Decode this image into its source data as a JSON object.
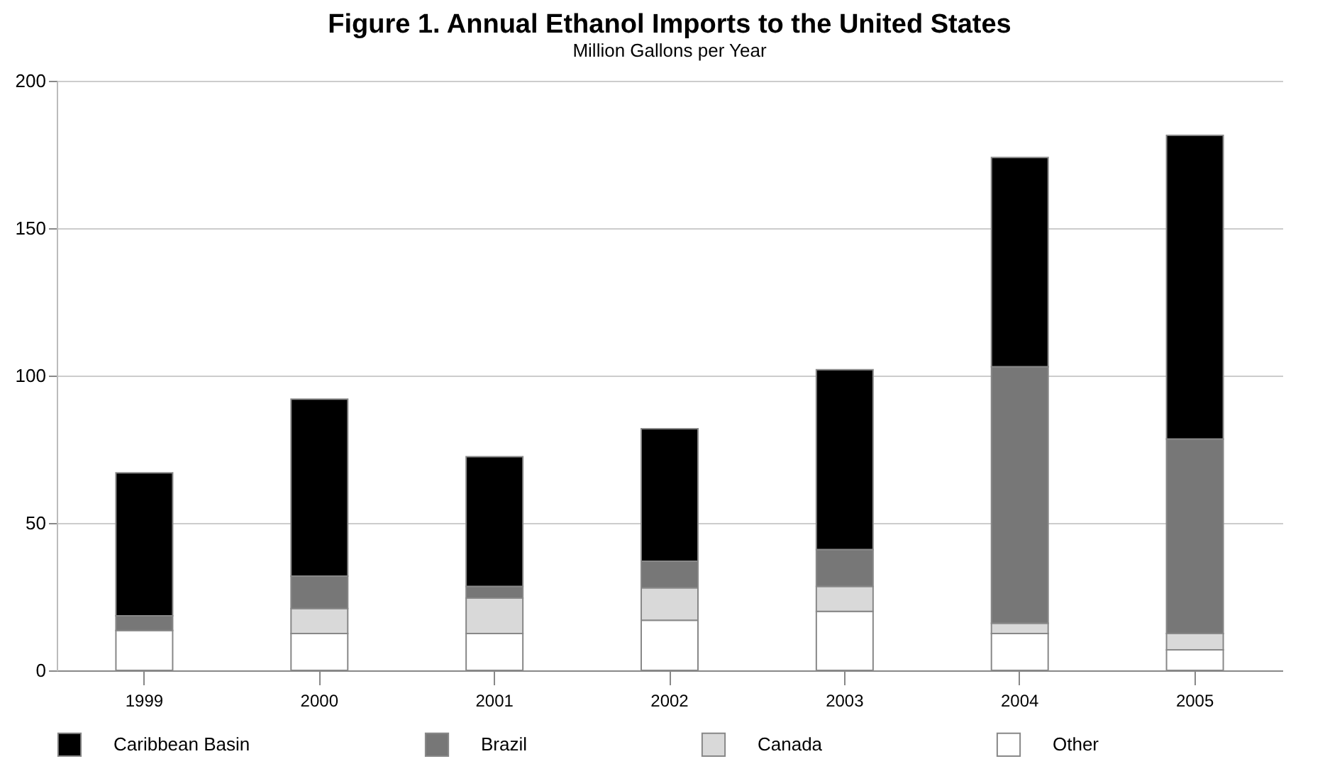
{
  "chart_data": {
    "type": "bar",
    "title": "Figure 1. Annual Ethanol Imports to the United States",
    "subtitle": "Million Gallons per Year",
    "categories": [
      "1999",
      "2000",
      "2001",
      "2002",
      "2003",
      "2004",
      "2005"
    ],
    "stacked": true,
    "series": [
      {
        "name": "Other",
        "color": "#ffffff",
        "values": [
          13.5,
          12.5,
          12.5,
          17,
          20,
          12.5,
          7
        ]
      },
      {
        "name": "Canada",
        "color": "#d9d9d9",
        "values": [
          0,
          8.5,
          12,
          11,
          8.5,
          3.5,
          5.5
        ]
      },
      {
        "name": "Brazil",
        "color": "#777777",
        "values": [
          5,
          11,
          4,
          9,
          12.5,
          87,
          66
        ]
      },
      {
        "name": "Caribbean Basin",
        "color": "#000000",
        "values": [
          48.5,
          60,
          44,
          45,
          61,
          71,
          103
        ]
      }
    ],
    "ylim": [
      0,
      200
    ],
    "yticks": [
      0,
      50,
      100,
      150,
      200
    ],
    "grid": "y",
    "legend": "bottom"
  }
}
